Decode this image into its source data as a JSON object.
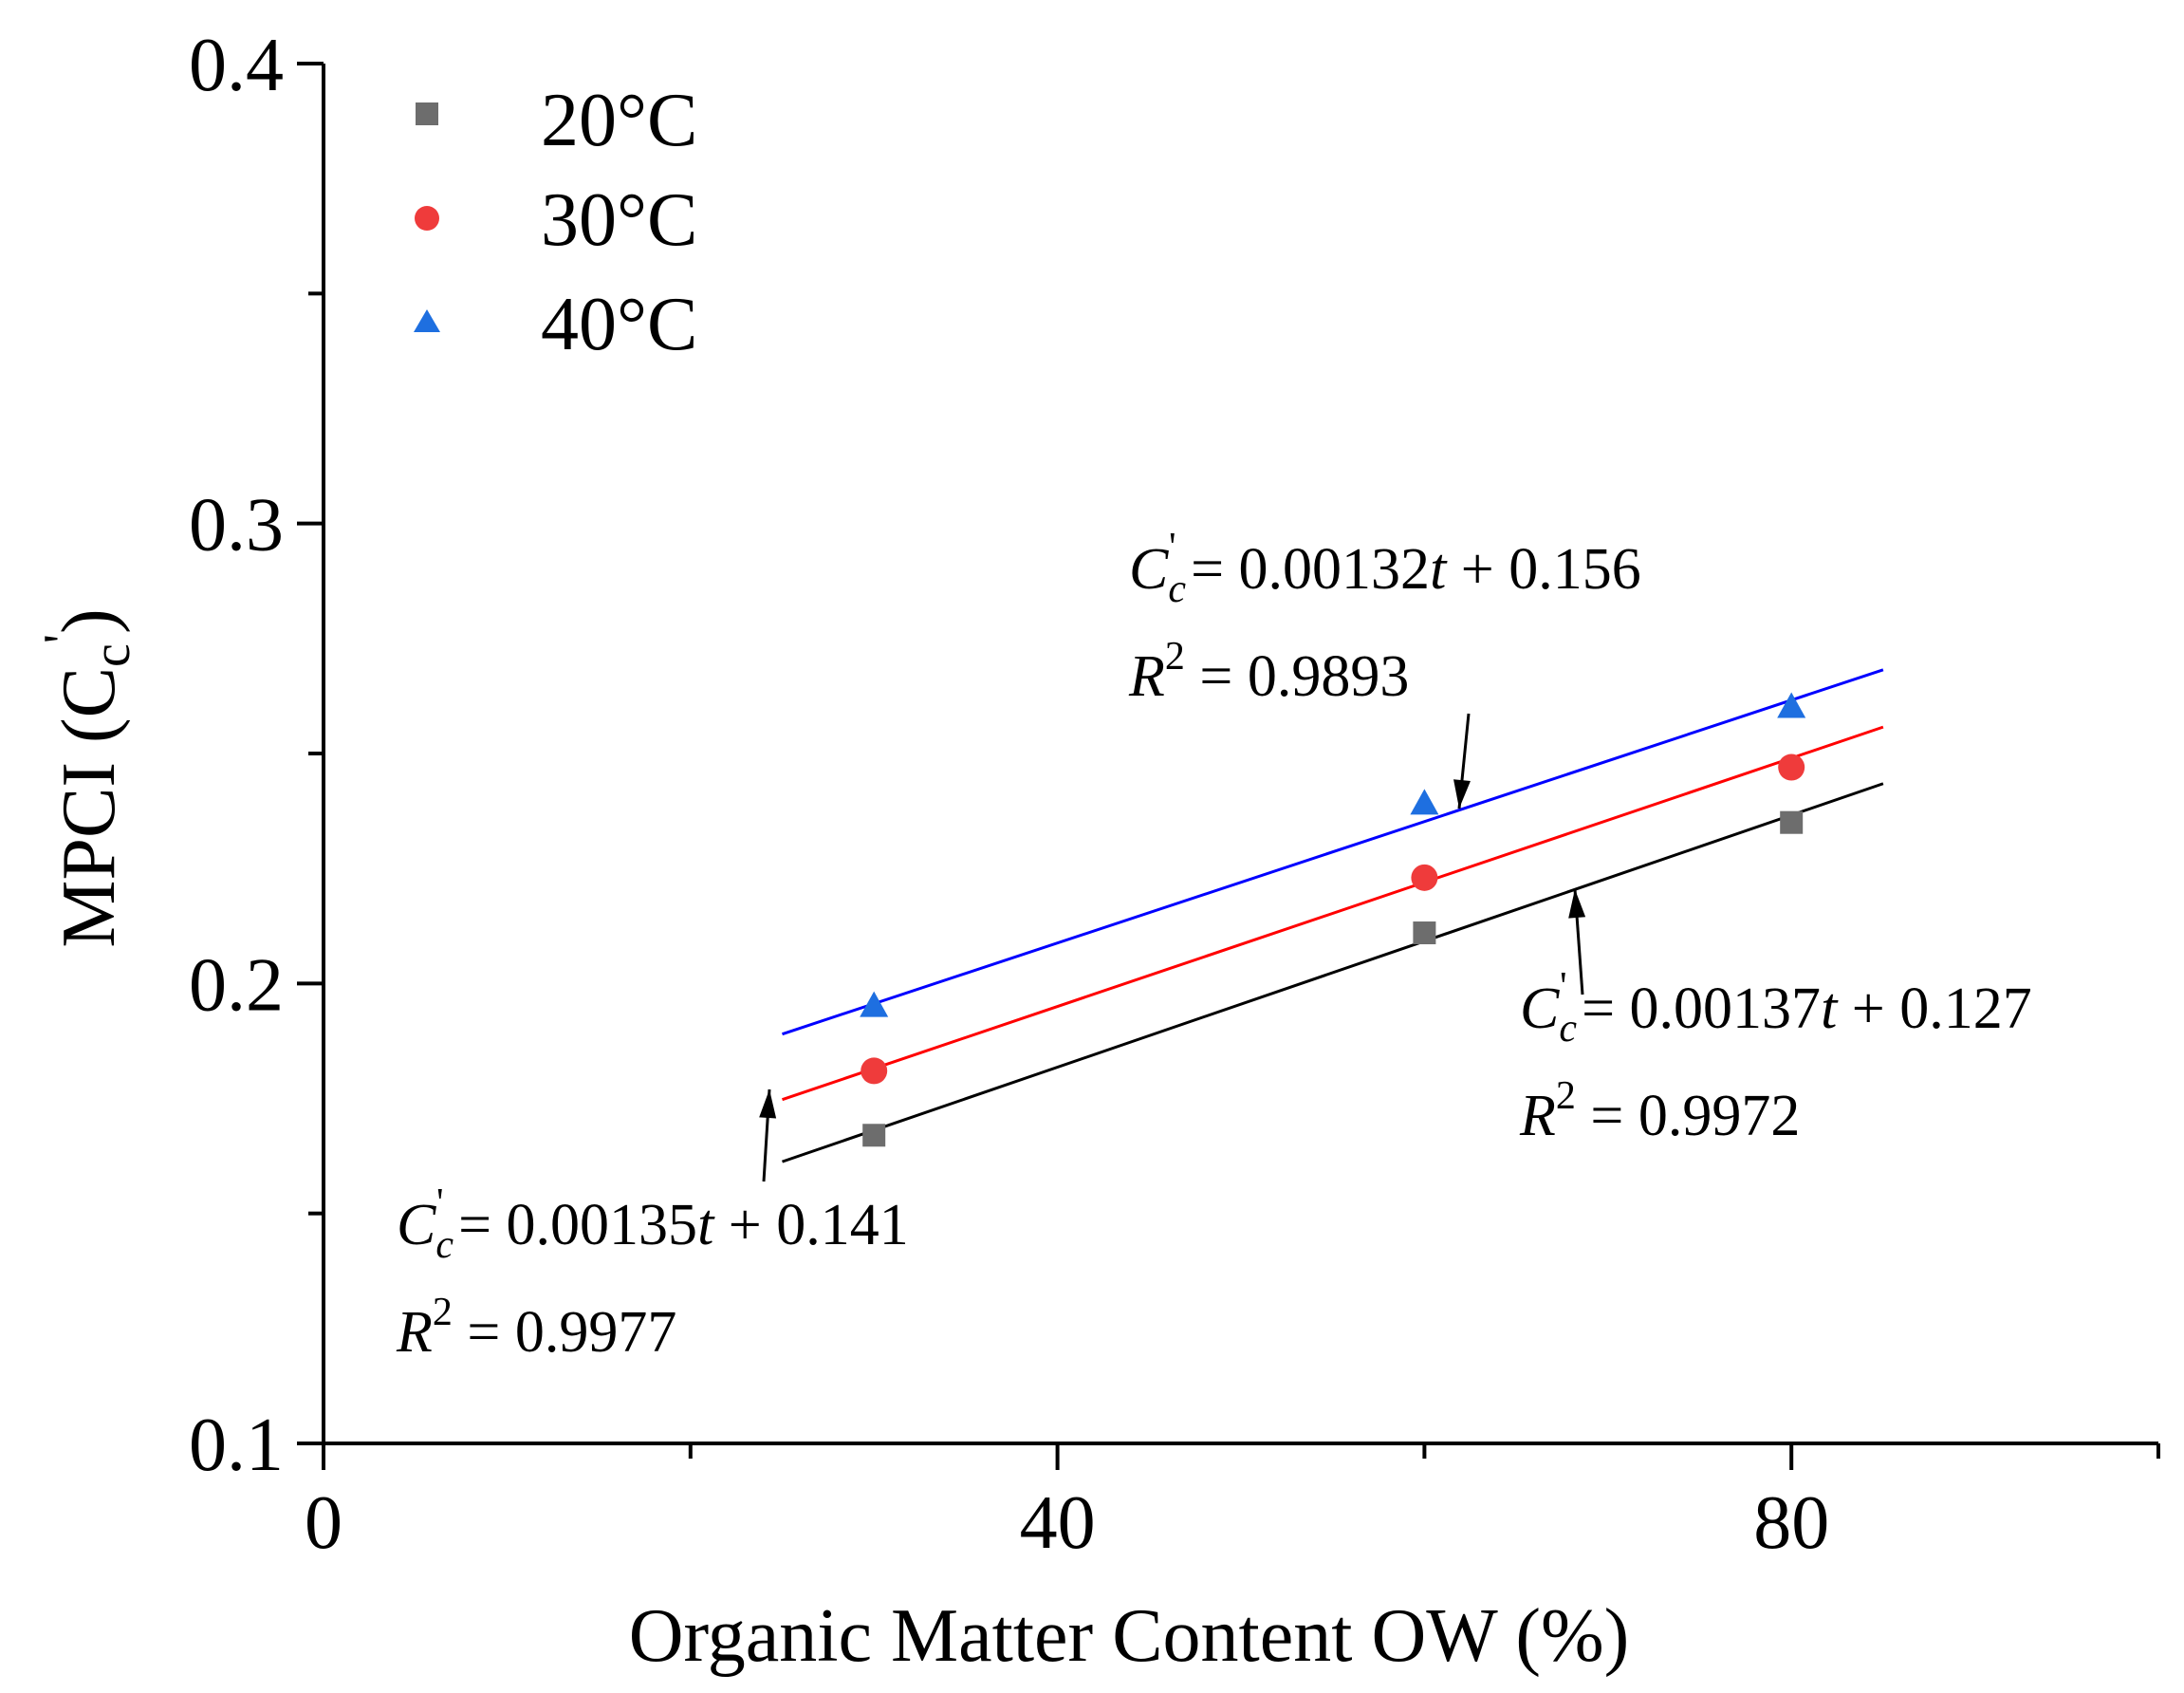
{
  "chart_data": {
    "type": "scatter",
    "xlabel": "Organic Matter Content OW (%)",
    "ylabel": "MPCI (C",
    "ylabel_sub": "c",
    "ylabel_sup": "'",
    "ylabel_close": ")",
    "xlim": [
      0,
      100
    ],
    "ylim": [
      0.1,
      0.4
    ],
    "x_ticks": [
      0,
      40,
      80
    ],
    "x_tick_labels": [
      "0",
      "40",
      "80"
    ],
    "x_minor_ticks": [
      20,
      60,
      100
    ],
    "y_ticks": [
      0.1,
      0.2,
      0.3,
      0.4
    ],
    "y_tick_labels": [
      "0.1",
      "0.2",
      "0.3",
      "0.4"
    ],
    "y_minor_ticks": [
      0.15,
      0.25,
      0.35
    ],
    "grid": false,
    "legend_position": "top-left",
    "series": [
      {
        "name": "20°C",
        "marker": "square",
        "color": "#6d6d6d",
        "line_color": "#000000",
        "x": [
          30,
          60,
          80
        ],
        "y": [
          0.167,
          0.211,
          0.235
        ],
        "fit": {
          "slope": 0.00137,
          "intercept": 0.127,
          "x_range": [
            25,
            85
          ]
        },
        "equation": {
          "lhs": "C",
          "sub": "c",
          "sup": "'",
          "rhs_num1": " = 0.00137",
          "var": "t",
          "rhs_num2": " + 0.127",
          "r_lhs": "R",
          "r_sup": "2",
          "r_rhs": " = 0.9972"
        }
      },
      {
        "name": "30°C",
        "marker": "circle",
        "color": "#ef3b3b",
        "line_color": "#ff0000",
        "x": [
          30,
          60,
          80
        ],
        "y": [
          0.181,
          0.223,
          0.247
        ],
        "fit": {
          "slope": 0.00135,
          "intercept": 0.141,
          "x_range": [
            25,
            85
          ]
        },
        "equation": {
          "lhs": "C",
          "sub": "c",
          "sup": "'",
          "rhs_num1": " = 0.00135",
          "var": "t",
          "rhs_num2": " + 0.141",
          "r_lhs": "R",
          "r_sup": "2",
          "r_rhs": " = 0.9977"
        }
      },
      {
        "name": "40°C",
        "marker": "triangle",
        "color": "#1e6fe0",
        "line_color": "#0000ff",
        "x": [
          30,
          60,
          80
        ],
        "y": [
          0.195,
          0.239,
          0.26
        ],
        "fit": {
          "slope": 0.00132,
          "intercept": 0.156,
          "x_range": [
            25,
            85
          ]
        },
        "equation": {
          "lhs": "C",
          "sub": "c",
          "sup": "'",
          "rhs_num1": " = 0.00132",
          "var": "t",
          "rhs_num2": " + 0.156",
          "r_lhs": "R",
          "r_sup": "2",
          "r_rhs": " = 0.9893"
        }
      }
    ]
  }
}
